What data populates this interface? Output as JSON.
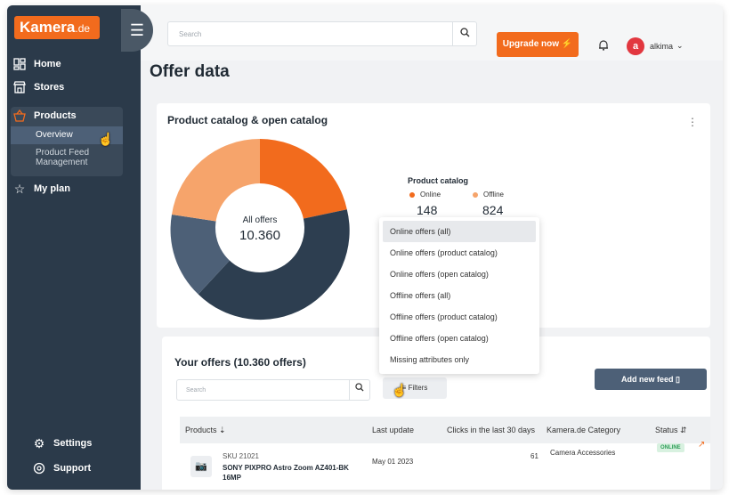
{
  "brand": {
    "name": "Kamera",
    "tld": ".de"
  },
  "topbar": {
    "search_placeholder": "Search",
    "upgrade_label": "Upgrade now",
    "username": "alkima",
    "avatar_initial": "a"
  },
  "sidebar": {
    "items": [
      {
        "label": "Home",
        "icon": "dashboard-icon"
      },
      {
        "label": "Stores",
        "icon": "store-icon"
      },
      {
        "label": "Products",
        "icon": "basket-icon"
      },
      {
        "label": "My plan",
        "icon": "star-icon"
      }
    ],
    "subitems": [
      {
        "label": "Overview"
      },
      {
        "label": "Product Feed Management"
      }
    ],
    "bottom": [
      {
        "label": "Settings",
        "icon": "gear-icon"
      },
      {
        "label": "Support",
        "icon": "support-icon"
      }
    ]
  },
  "page": {
    "title": "Offer data"
  },
  "catalog_card": {
    "title": "Product catalog & open catalog",
    "donut_label": "All offers",
    "donut_value": "10.360",
    "catalog_title": "Product catalog",
    "online_label": "Online",
    "offline_label": "Offline",
    "online_value": "148",
    "offline_value": "824"
  },
  "dropdown": {
    "items": [
      "Online offers (all)",
      "Online offers (product catalog)",
      "Online offers (open catalog)",
      "Offline offers (all)",
      "Offline offers (product catalog)",
      "Offline offers (open catalog)",
      "Missing attributes only"
    ]
  },
  "offers": {
    "title": "Your offers (10.360 offers)",
    "search_placeholder": "Search",
    "filters_label": "Filters",
    "add_feed_label": "Add new feed",
    "columns": [
      "Products",
      "Last update",
      "Clicks in the last 30 days",
      "Kamera.de Category",
      "Status"
    ],
    "rows": [
      {
        "sku": "SKU 21021",
        "name": "SONY PIXPRO Astro Zoom AZ401-BK 16MP",
        "last_update": "May 01 2023",
        "clicks": "61",
        "category": "Camera Accessories",
        "status": "ONLINE"
      }
    ]
  },
  "colors": {
    "accent": "#f26b1d",
    "sidebar": "#2b3a4a",
    "slate": "#4d6077",
    "dark": "#2d3e50",
    "light_orange": "#f6a46b"
  }
}
